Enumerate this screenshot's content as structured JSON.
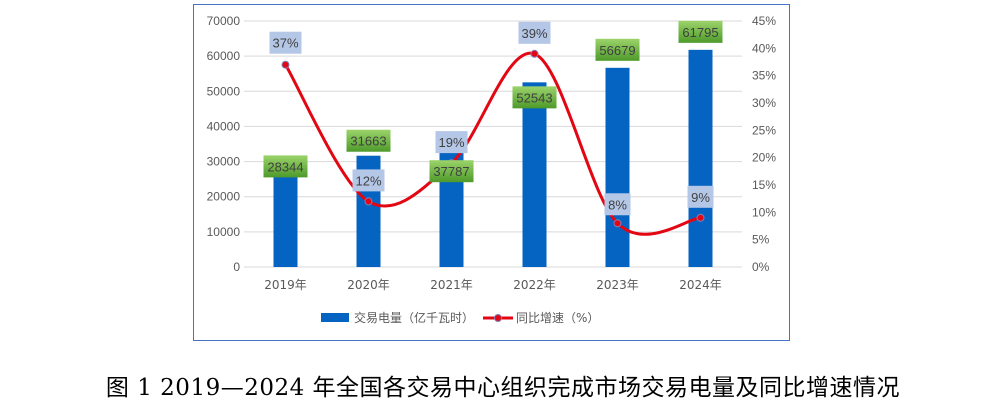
{
  "chart_data": {
    "type": "bar+line",
    "categories": [
      "2019年",
      "2020年",
      "2021年",
      "2022年",
      "2023年",
      "2024年"
    ],
    "series": [
      {
        "name": "交易电量（亿千瓦时）",
        "type": "bar",
        "axis": "left",
        "values": [
          28344,
          31663,
          37787,
          52543,
          56679,
          61795
        ],
        "labels": [
          "28344",
          "31663",
          "37787",
          "52543",
          "56679",
          "61795"
        ],
        "color": "#0563C1"
      },
      {
        "name": "同比增速（%）",
        "type": "line",
        "axis": "right",
        "values": [
          37,
          12,
          19,
          39,
          8,
          9
        ],
        "labels": [
          "37%",
          "12%",
          "19%",
          "39%",
          "8%",
          "9%"
        ],
        "color": "#E30613"
      }
    ],
    "left_axis": {
      "min": 0,
      "max": 70000,
      "step": 10000,
      "ticks": [
        "0",
        "10000",
        "20000",
        "30000",
        "40000",
        "50000",
        "60000",
        "70000"
      ]
    },
    "right_axis": {
      "min": 0,
      "max": 45,
      "step": 5,
      "ticks": [
        "0%",
        "5%",
        "10%",
        "15%",
        "20%",
        "25%",
        "30%",
        "35%",
        "40%",
        "45%"
      ]
    },
    "grid": true,
    "legend": "bottom"
  },
  "caption": "图 1 2019—2024 年全国各交易中心组织完成市场交易电量及同比增速情况"
}
